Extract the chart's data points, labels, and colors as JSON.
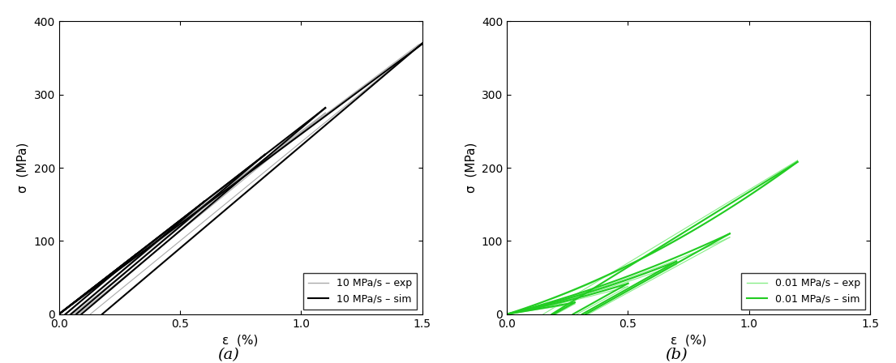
{
  "title_a": "(a)",
  "title_b": "(b)",
  "xlabel": "ε  (%)",
  "ylabel": "σ  (MPa)",
  "xlim": [
    0,
    1.5
  ],
  "ylim": [
    0,
    400
  ],
  "xticks": [
    0,
    0.5,
    1.0,
    1.5
  ],
  "yticks": [
    0,
    100,
    200,
    300,
    400
  ],
  "legend_a": [
    "10 MPa/s – exp",
    "10 MPa/s – sim"
  ],
  "legend_b": [
    "0.01 MPa/s – exp",
    "0.01 MPa/s – sim"
  ],
  "exp_color_a": "#aaaaaa",
  "sim_color_a": "#000000",
  "exp_color_b": "#88ee88",
  "sim_color_b": "#22cc22",
  "background": "#ffffff",
  "cycles_a_exp": [
    {
      "eps_max": 0.32,
      "sigma_max": 80,
      "load_slope": 250,
      "unload_slope": 270
    },
    {
      "eps_max": 0.6,
      "sigma_max": 150,
      "load_slope": 250,
      "unload_slope": 270
    },
    {
      "eps_max": 0.85,
      "sigma_max": 213,
      "load_slope": 250,
      "unload_slope": 270
    },
    {
      "eps_max": 1.1,
      "sigma_max": 275,
      "load_slope": 250,
      "unload_slope": 270
    },
    {
      "eps_max": 1.5,
      "sigma_max": 370,
      "load_slope": 248,
      "unload_slope": 270
    }
  ],
  "cycles_a_sim": [
    {
      "eps_max": 0.32,
      "sigma_max": 82,
      "load_slope": 256,
      "unload_slope": 280
    },
    {
      "eps_max": 0.6,
      "sigma_max": 154,
      "load_slope": 256,
      "unload_slope": 280
    },
    {
      "eps_max": 0.85,
      "sigma_max": 218,
      "load_slope": 256,
      "unload_slope": 280
    },
    {
      "eps_max": 1.1,
      "sigma_max": 282,
      "load_slope": 256,
      "unload_slope": 280
    },
    {
      "eps_max": 1.5,
      "sigma_max": 370,
      "load_slope": 246,
      "unload_slope": 280
    }
  ],
  "cycles_b_exp": [
    {
      "eps_max": 0.28,
      "sigma_max": 14,
      "load_slope_init": 50,
      "stiffening": 0.5,
      "unload_slope": 180
    },
    {
      "eps_max": 0.5,
      "sigma_max": 38,
      "load_slope_init": 60,
      "stiffening": 0.8,
      "unload_slope": 180
    },
    {
      "eps_max": 0.7,
      "sigma_max": 68,
      "load_slope_init": 70,
      "stiffening": 1.2,
      "unload_slope": 180
    },
    {
      "eps_max": 0.92,
      "sigma_max": 105,
      "load_slope_init": 80,
      "stiffening": 1.5,
      "unload_slope": 180
    },
    {
      "eps_max": 1.2,
      "sigma_max": 210,
      "load_slope_init": 100,
      "stiffening": 3.0,
      "unload_slope": 200
    }
  ],
  "cycles_b_sim": [
    {
      "eps_max": 0.28,
      "sigma_max": 16,
      "load_slope_init": 55,
      "stiffening": 0.6,
      "unload_slope": 185
    },
    {
      "eps_max": 0.5,
      "sigma_max": 42,
      "load_slope_init": 65,
      "stiffening": 0.9,
      "unload_slope": 185
    },
    {
      "eps_max": 0.7,
      "sigma_max": 72,
      "load_slope_init": 75,
      "stiffening": 1.3,
      "unload_slope": 185
    },
    {
      "eps_max": 0.92,
      "sigma_max": 110,
      "load_slope_init": 85,
      "stiffening": 1.6,
      "unload_slope": 185
    },
    {
      "eps_max": 1.2,
      "sigma_max": 208,
      "load_slope_init": 105,
      "stiffening": 3.1,
      "unload_slope": 205
    }
  ]
}
